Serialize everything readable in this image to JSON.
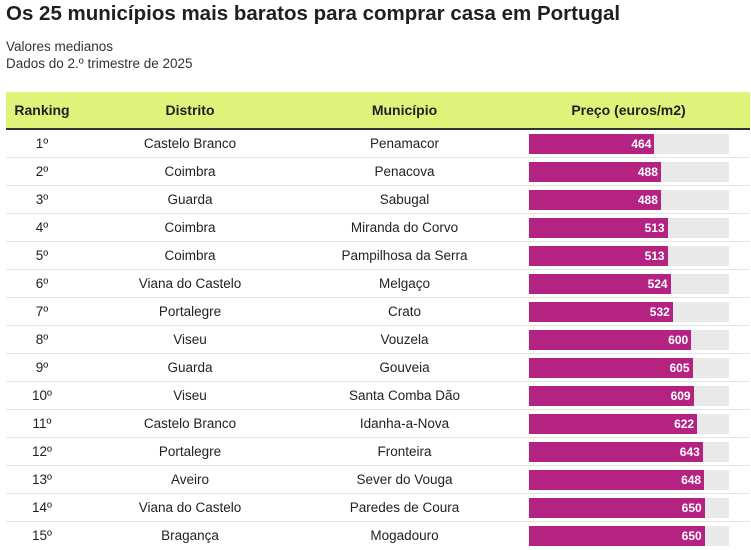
{
  "title": "Os 25 municípios mais baratos para comprar casa em Portugal",
  "subtitle_line1": "Valores medianos",
  "subtitle_line2": "Dados do 2.º trimestre de 2025",
  "columns": [
    "Ranking",
    "Distrito",
    "Município",
    "Preço (euros/m2)"
  ],
  "colors": {
    "header_bg": "#dff27a",
    "bar": "#b42382",
    "bar_track": "#e9e9e9"
  },
  "chart_data": {
    "type": "table",
    "title": "Os 25 municípios mais baratos para comprar casa em Portugal",
    "value_column": "Preço (euros/m2)",
    "value_scale_max": 740,
    "rows": [
      {
        "rank": "1º",
        "distrito": "Castelo Branco",
        "municipio": "Penamacor",
        "preco": 464
      },
      {
        "rank": "2º",
        "distrito": "Coimbra",
        "municipio": "Penacova",
        "preco": 488
      },
      {
        "rank": "3º",
        "distrito": "Guarda",
        "municipio": "Sabugal",
        "preco": 488
      },
      {
        "rank": "4º",
        "distrito": "Coimbra",
        "municipio": "Miranda do Corvo",
        "preco": 513
      },
      {
        "rank": "5º",
        "distrito": "Coimbra",
        "municipio": "Pampilhosa da Serra",
        "preco": 513
      },
      {
        "rank": "6º",
        "distrito": "Viana do Castelo",
        "municipio": "Melgaço",
        "preco": 524
      },
      {
        "rank": "7º",
        "distrito": "Portalegre",
        "municipio": "Crato",
        "preco": 532
      },
      {
        "rank": "8º",
        "distrito": "Viseu",
        "municipio": "Vouzela",
        "preco": 600
      },
      {
        "rank": "9º",
        "distrito": "Guarda",
        "municipio": "Gouveia",
        "preco": 605
      },
      {
        "rank": "10º",
        "distrito": "Viseu",
        "municipio": "Santa Comba Dão",
        "preco": 609
      },
      {
        "rank": "11º",
        "distrito": "Castelo Branco",
        "municipio": "Idanha-a-Nova",
        "preco": 622
      },
      {
        "rank": "12º",
        "distrito": "Portalegre",
        "municipio": "Fronteira",
        "preco": 643
      },
      {
        "rank": "13º",
        "distrito": "Aveiro",
        "municipio": "Sever do Vouga",
        "preco": 648
      },
      {
        "rank": "14º",
        "distrito": "Viana do Castelo",
        "municipio": "Paredes de Coura",
        "preco": 650
      },
      {
        "rank": "15º",
        "distrito": "Bragança",
        "municipio": "Mogadouro",
        "preco": 650
      }
    ]
  }
}
